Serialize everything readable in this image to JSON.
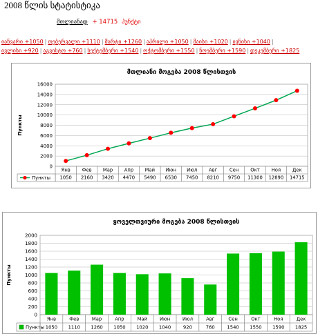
{
  "page": {
    "title": "2008 წლის სტატისტიკა",
    "total_label": "მთლიანად",
    "total_value": "+ 14715",
    "total_unit": "პუნქტი"
  },
  "month_links": [
    "იანვარი +1050",
    "თებერვალი +1110",
    "მარტი +1260",
    "აპრილი +1050",
    "მაისი +1020",
    "ივნისი +1040",
    "ივლისი +920",
    "აგვისტო +760",
    "სექტემბერი +1540",
    "ოქტომბერი +1550",
    "ნოემბერი +1590",
    "დეკემბერი +1825"
  ],
  "chart_data": [
    {
      "type": "line",
      "title": "მთლიანი მოგება 2008 წლისთვის",
      "ylabel": "Пункты",
      "xlabel": "",
      "categories": [
        "Янв",
        "Фев",
        "Мар",
        "Апр",
        "Май",
        "Июн",
        "Июл",
        "Авг",
        "Сен",
        "Окт",
        "Ноя",
        "Дек"
      ],
      "series": [
        {
          "name": "Пункты",
          "values": [
            1050,
            2160,
            3420,
            4470,
            5490,
            6530,
            7450,
            8210,
            9750,
            11300,
            12890,
            14715
          ]
        }
      ],
      "ylim": [
        0,
        16000
      ],
      "yticks": [
        0,
        2000,
        4000,
        6000,
        8000,
        10000,
        12000,
        14000,
        16000
      ],
      "grid": true,
      "legend": "bottom-left data table",
      "colors": {
        "line": "#00a651",
        "marker": "#ff0000"
      }
    },
    {
      "type": "bar",
      "title": "ყოველთვიური მოგება 2008 წლისთვის",
      "ylabel": "Пункты",
      "xlabel": "",
      "categories": [
        "Янв",
        "Фев",
        "Мар",
        "Апр",
        "Май",
        "Июн",
        "Июл",
        "Авг",
        "Сен",
        "Окт",
        "Ноя",
        "Дек"
      ],
      "series": [
        {
          "name": "Пункты",
          "values": [
            1050,
            1110,
            1260,
            1050,
            1020,
            1040,
            920,
            760,
            1540,
            1550,
            1590,
            1825
          ]
        }
      ],
      "ylim": [
        0,
        2000
      ],
      "yticks": [
        0,
        200,
        400,
        600,
        800,
        1000,
        1200,
        1400,
        1600,
        1800,
        2000
      ],
      "grid": true,
      "legend": "bottom-left data table",
      "colors": {
        "bar": "#00c000"
      }
    }
  ]
}
